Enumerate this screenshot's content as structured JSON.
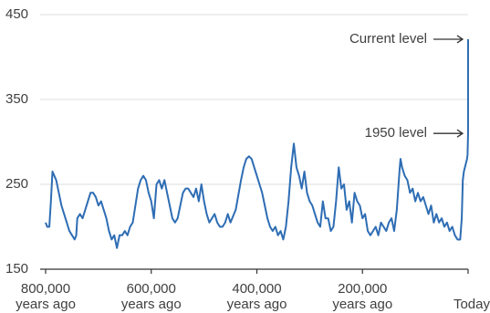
{
  "chart_data": {
    "type": "line",
    "color": "#2e6db4",
    "xlim": [
      800000,
      0
    ],
    "xticks": [
      {
        "value": 800000,
        "label": "800,000 years ago"
      },
      {
        "value": 600000,
        "label": "600,000 years ago"
      },
      {
        "value": 400000,
        "label": "400,000 years ago"
      },
      {
        "value": 200000,
        "label": "200,000 years ago"
      },
      {
        "value": 0,
        "label": "Today"
      }
    ],
    "ylim": [
      150,
      450
    ],
    "yticks": [
      150,
      250,
      350,
      450
    ],
    "grid": true,
    "x": [
      800000,
      797000,
      793000,
      790000,
      787000,
      780000,
      775000,
      770000,
      765000,
      760000,
      755000,
      750000,
      745000,
      742000,
      740000,
      735000,
      730000,
      725000,
      720000,
      715000,
      710000,
      705000,
      700000,
      695000,
      690000,
      685000,
      680000,
      675000,
      670000,
      665000,
      660000,
      655000,
      650000,
      645000,
      640000,
      635000,
      630000,
      625000,
      620000,
      615000,
      610000,
      605000,
      600000,
      595000,
      590000,
      585000,
      580000,
      575000,
      570000,
      565000,
      560000,
      555000,
      550000,
      545000,
      540000,
      535000,
      530000,
      525000,
      520000,
      515000,
      510000,
      505000,
      500000,
      495000,
      490000,
      485000,
      480000,
      475000,
      470000,
      465000,
      460000,
      455000,
      450000,
      440000,
      430000,
      425000,
      420000,
      415000,
      410000,
      405000,
      400000,
      395000,
      390000,
      385000,
      380000,
      375000,
      370000,
      365000,
      360000,
      355000,
      350000,
      345000,
      340000,
      335000,
      330000,
      325000,
      320000,
      315000,
      310000,
      305000,
      300000,
      295000,
      290000,
      285000,
      280000,
      275000,
      270000,
      265000,
      260000,
      255000,
      250000,
      245000,
      240000,
      235000,
      230000,
      225000,
      220000,
      215000,
      210000,
      205000,
      200000,
      195000,
      190000,
      185000,
      180000,
      175000,
      170000,
      165000,
      160000,
      155000,
      150000,
      145000,
      140000,
      135000,
      130000,
      128000,
      125000,
      120000,
      115000,
      110000,
      105000,
      100000,
      95000,
      90000,
      85000,
      80000,
      75000,
      70000,
      65000,
      60000,
      55000,
      50000,
      45000,
      40000,
      35000,
      30000,
      25000,
      20000,
      15000,
      12000,
      10000,
      8000,
      6000,
      4000,
      2000,
      1000,
      70,
      0
    ],
    "values": [
      205,
      200,
      200,
      230,
      265,
      255,
      240,
      225,
      215,
      205,
      195,
      190,
      185,
      190,
      210,
      215,
      210,
      220,
      230,
      240,
      240,
      235,
      225,
      230,
      220,
      210,
      195,
      185,
      190,
      175,
      190,
      190,
      195,
      190,
      200,
      205,
      225,
      245,
      255,
      260,
      255,
      240,
      230,
      210,
      250,
      255,
      245,
      255,
      240,
      225,
      210,
      205,
      210,
      225,
      240,
      245,
      245,
      240,
      235,
      245,
      230,
      250,
      230,
      215,
      205,
      210,
      215,
      205,
      200,
      200,
      205,
      215,
      205,
      220,
      255,
      270,
      280,
      283,
      280,
      270,
      260,
      250,
      240,
      225,
      210,
      200,
      195,
      200,
      190,
      195,
      185,
      200,
      230,
      270,
      298,
      270,
      260,
      245,
      265,
      240,
      230,
      225,
      215,
      205,
      200,
      230,
      210,
      210,
      195,
      200,
      230,
      270,
      245,
      250,
      220,
      230,
      205,
      240,
      230,
      225,
      210,
      215,
      195,
      190,
      195,
      200,
      190,
      205,
      200,
      195,
      205,
      210,
      195,
      220,
      265,
      280,
      270,
      260,
      255,
      240,
      245,
      230,
      240,
      230,
      235,
      225,
      215,
      225,
      205,
      215,
      205,
      210,
      200,
      205,
      195,
      200,
      190,
      185,
      185,
      210,
      255,
      265,
      270,
      275,
      280,
      285,
      310,
      421
    ],
    "annotations": [
      {
        "text": "Current level",
        "y": 421
      },
      {
        "text": "1950 level",
        "y": 310
      }
    ]
  }
}
